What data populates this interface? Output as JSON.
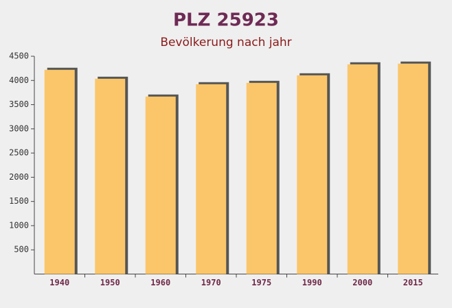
{
  "chart_data": {
    "type": "bar",
    "title": "PLZ 25923",
    "subtitle": "Bevölkerung nach jahr",
    "categories": [
      "1940",
      "1950",
      "1960",
      "1970",
      "1975",
      "1990",
      "2000",
      "2015"
    ],
    "values": [
      4220,
      4035,
      3667,
      3922,
      3950,
      4106,
      4333,
      4348
    ],
    "color": "#fbc66a",
    "ylim": [
      0,
      4500
    ],
    "yticks": [
      500,
      1000,
      1500,
      2000,
      2500,
      3000,
      3500,
      4000,
      4500
    ],
    "grid": false
  }
}
